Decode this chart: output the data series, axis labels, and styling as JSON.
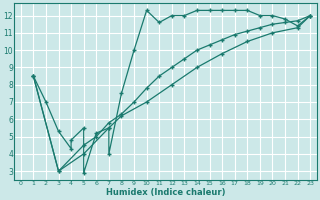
{
  "xlabel": "Humidex (Indice chaleur)",
  "bg_color": "#cce8e8",
  "grid_color": "#ffffff",
  "line_color": "#1a7a6e",
  "xlim": [
    -0.5,
    23.5
  ],
  "ylim": [
    2.5,
    12.7
  ],
  "xticks": [
    0,
    1,
    2,
    3,
    4,
    5,
    6,
    7,
    8,
    9,
    10,
    11,
    12,
    13,
    14,
    15,
    16,
    17,
    18,
    19,
    20,
    21,
    22,
    23
  ],
  "yticks": [
    3,
    4,
    5,
    6,
    7,
    8,
    9,
    10,
    11,
    12
  ],
  "series": [
    {
      "x": [
        1,
        2,
        3,
        4,
        4,
        5,
        5,
        6,
        7,
        7,
        8,
        9,
        10,
        11,
        12,
        13,
        14,
        15,
        16,
        17,
        18,
        19,
        20,
        21,
        22,
        23
      ],
      "y": [
        8.5,
        7.0,
        5.3,
        4.3,
        4.8,
        5.5,
        2.9,
        5.2,
        5.5,
        4.0,
        7.5,
        10.0,
        12.3,
        11.6,
        12.0,
        12.0,
        12.3,
        12.3,
        12.3,
        12.3,
        12.3,
        12.0,
        12.0,
        11.8,
        11.4,
        12.0
      ]
    },
    {
      "x": [
        1,
        3,
        5,
        6,
        7,
        8,
        9,
        10,
        11,
        12,
        13,
        14,
        15,
        16,
        17,
        18,
        19,
        20,
        21,
        22,
        23
      ],
      "y": [
        8.5,
        3.0,
        4.5,
        5.0,
        5.8,
        6.3,
        7.0,
        7.8,
        8.5,
        9.0,
        9.5,
        10.0,
        10.3,
        10.6,
        10.9,
        11.1,
        11.3,
        11.5,
        11.6,
        11.7,
        12.0
      ]
    },
    {
      "x": [
        1,
        3,
        5,
        7,
        8,
        10,
        12,
        14,
        16,
        18,
        20,
        22,
        23
      ],
      "y": [
        8.5,
        3.0,
        4.0,
        5.5,
        6.2,
        7.0,
        8.0,
        9.0,
        9.8,
        10.5,
        11.0,
        11.3,
        12.0
      ]
    }
  ]
}
